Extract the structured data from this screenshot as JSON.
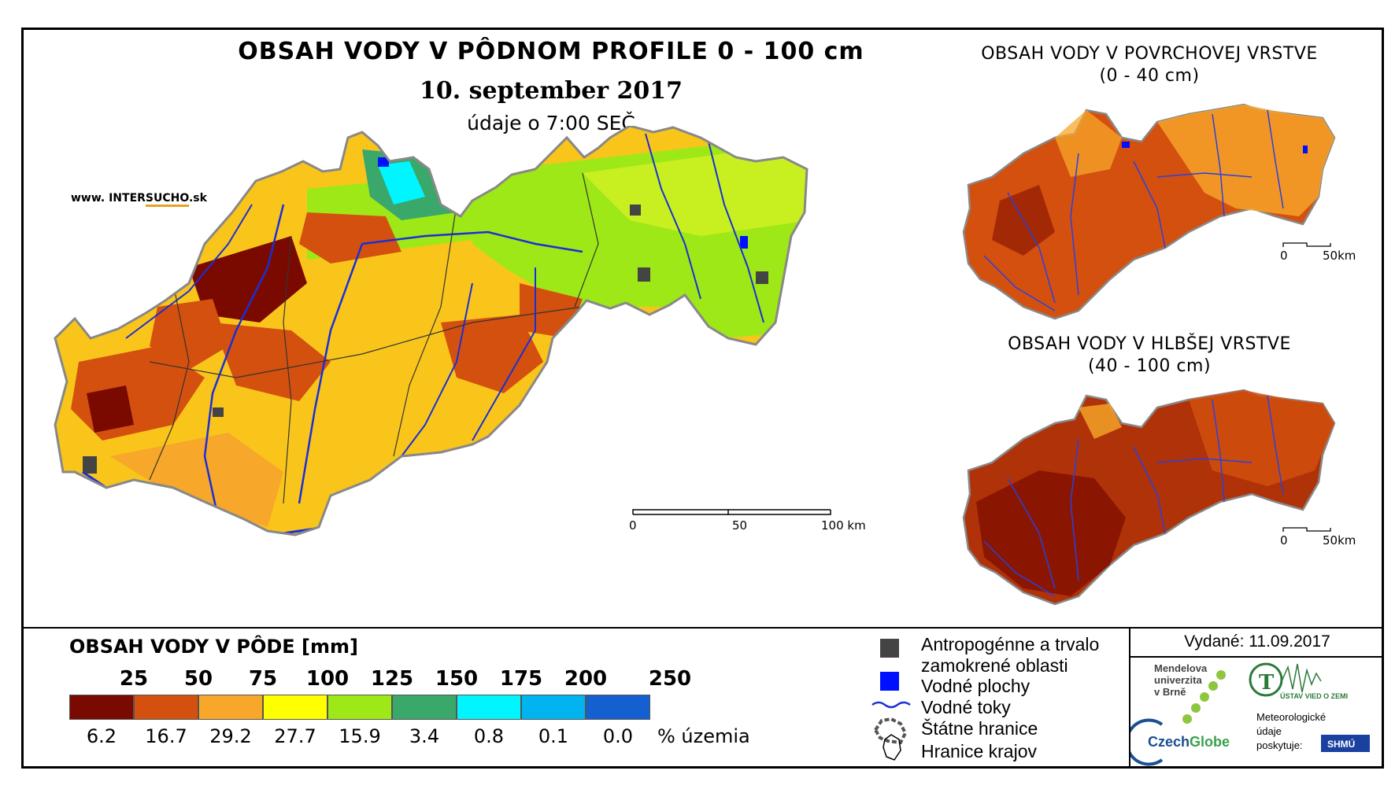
{
  "main": {
    "title": "OBSAH VODY V PÔDNOM PROFILE 0 - 100 cm",
    "date": "10. september 2017",
    "time": "údaje o 7:00 SEČ",
    "website": {
      "prefix": "www. INTER",
      "highlight": "SUCHO",
      "suffix": ".sk"
    },
    "scale": {
      "ticks": [
        "0",
        "50",
        "100 km"
      ]
    }
  },
  "surface_map": {
    "title_line1": "OBSAH VODY V POVRCHOVEJ VRSTVE",
    "title_line2": "(0 - 40 cm)",
    "scale": {
      "ticks": [
        "0",
        "50km"
      ]
    }
  },
  "deep_map": {
    "title_line1": "OBSAH VODY V HLBŠEJ VRSTVE",
    "title_line2": "(40 - 100 cm)",
    "scale": {
      "ticks": [
        "0",
        "50km"
      ]
    }
  },
  "legend": {
    "title": "OBSAH VODY V PÔDE [mm]",
    "thresholds": [
      "25",
      "50",
      "75",
      "100",
      "125",
      "150",
      "175",
      "200",
      "250"
    ],
    "classes": [
      {
        "color": "#7a0a00",
        "percent": "6.2"
      },
      {
        "color": "#d4500f",
        "percent": "16.7"
      },
      {
        "color": "#f7a72a",
        "percent": "29.2"
      },
      {
        "color": "#ffff00",
        "percent": "27.7"
      },
      {
        "color": "#9ee817",
        "percent": "15.9"
      },
      {
        "color": "#3aa86a",
        "percent": "3.4"
      },
      {
        "color": "#00f5ff",
        "percent": "0.8"
      },
      {
        "color": "#00b4f0",
        "percent": "0.1"
      },
      {
        "color": "#1560d0",
        "percent": "0.0"
      }
    ],
    "percent_unit": "% územia"
  },
  "symbols": {
    "anthropogenic_line1": "Antropogénne a trvalo",
    "anthropogenic_line2": "zamokrené oblasti",
    "water_bodies": "Vodné plochy",
    "rivers": "Vodné toky",
    "state_border": "Štátne hranice",
    "region_border": "Hranice krajov"
  },
  "info": {
    "issued": "Vydané: 11.09.2017",
    "mendel_line1": "Mendelova",
    "mendel_line2": "univerzita",
    "mendel_line3": "v Brně",
    "czechglobe_czech": "Czech",
    "czechglobe_globe": "Globe",
    "ustav": "ÚSTAV VIED O ZEMI",
    "meteo_line1": "Meteorologické",
    "meteo_line2": "údaje",
    "meteo_line3": "poskytuje:",
    "shmu": "SHMÚ"
  },
  "colors": {
    "river": "#1a2fd6",
    "anthropogenic": "#444444",
    "water_body": "#0010ff"
  }
}
